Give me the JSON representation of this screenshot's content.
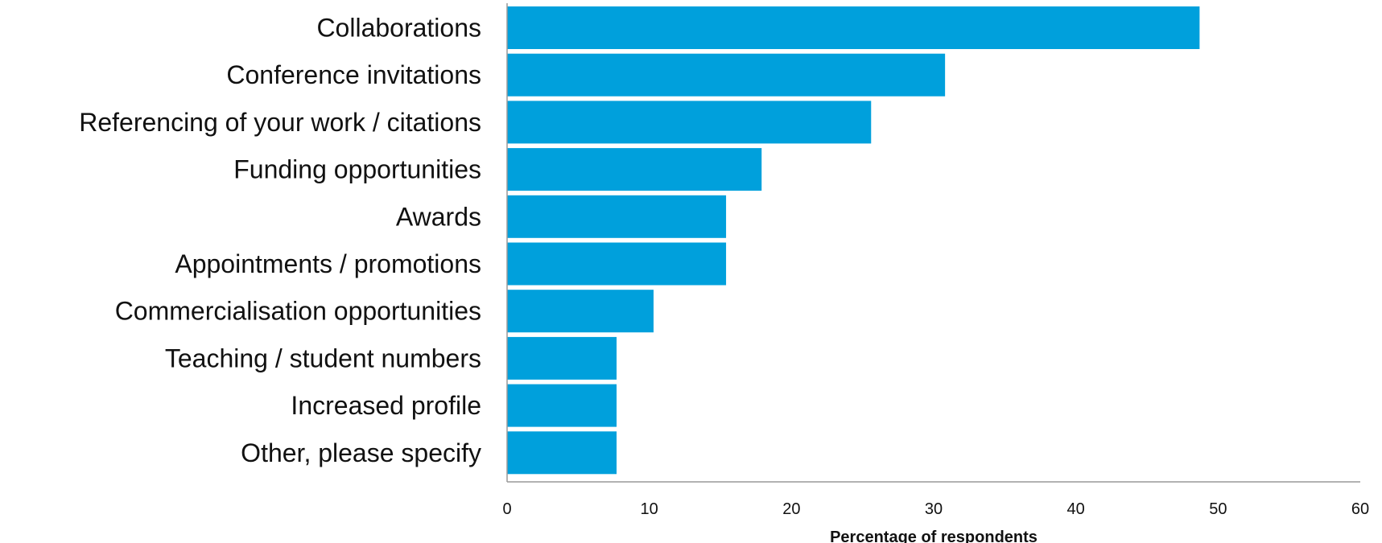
{
  "chart_data": {
    "type": "bar",
    "orientation": "horizontal",
    "categories": [
      "Collaborations",
      "Conference invitations",
      "Referencing of your work / citations",
      "Funding opportunities",
      "Awards",
      "Appointments / promotions",
      "Commercialisation opportunities",
      "Teaching / student numbers",
      "Increased profile",
      "Other, please specify"
    ],
    "values": [
      48.7,
      30.8,
      25.6,
      17.9,
      15.4,
      15.4,
      10.3,
      7.7,
      7.7,
      7.7
    ],
    "title": "",
    "xlabel": "Percentage of respondents",
    "ylabel": "",
    "xlim": [
      0,
      60
    ],
    "xticks": [
      0,
      10,
      20,
      30,
      40,
      50,
      60
    ],
    "grid": false,
    "legend": "none",
    "bar_color": "#00a0dc",
    "axis_color": "#999999"
  }
}
